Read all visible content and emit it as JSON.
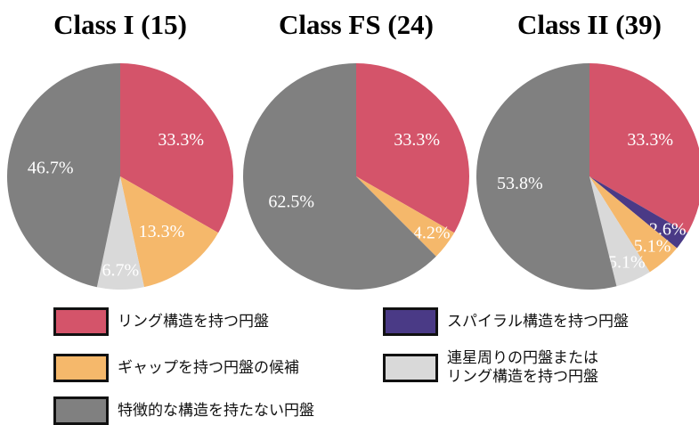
{
  "chart_data": [
    {
      "type": "pie",
      "title": "Class I (15)",
      "values": [
        33.3,
        null,
        13.3,
        6.7,
        46.7
      ],
      "value_labels": [
        "33.3%",
        null,
        "13.3%",
        "6.7%",
        "46.7%"
      ]
    },
    {
      "type": "pie",
      "title": "Class FS (24)",
      "values": [
        33.3,
        null,
        4.2,
        null,
        62.5
      ],
      "value_labels": [
        "33.3%",
        null,
        "4.2%",
        null,
        "62.5%"
      ]
    },
    {
      "type": "pie",
      "title": "Class II (39)",
      "values": [
        33.3,
        2.6,
        5.1,
        5.1,
        53.8
      ],
      "value_labels": [
        "33.3%",
        "2.6%",
        "5.1%",
        "5.1%",
        "53.8%"
      ]
    }
  ],
  "legend": [
    {
      "name": "リング構造を持つ円盤",
      "color": "#d4546a"
    },
    {
      "name": "スパイラル構造を持つ円盤",
      "color": "#4a3a86"
    },
    {
      "name": "ギャップを持つ円盤の候補",
      "color": "#f5b86b"
    },
    {
      "name": "連星周りの円盤または\nリング構造を持つ円盤",
      "color": "#d9d9d9"
    },
    {
      "name": "特徴的な構造を持たない円盤",
      "color": "#808080"
    }
  ]
}
